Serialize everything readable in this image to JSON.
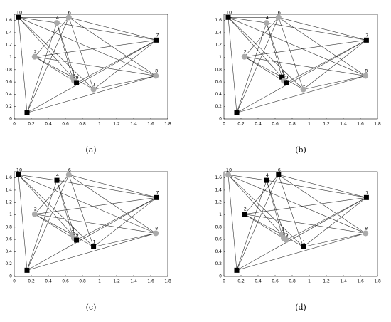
{
  "chart_data": [
    {
      "type": "scatter",
      "caption": "(a)",
      "labels": [
        "1",
        "2",
        "3",
        "4",
        "5",
        "6",
        "7",
        "8",
        "9",
        "10",
        null
      ],
      "x": [
        0.93,
        0.24,
        0.68,
        0.5,
        0.7,
        0.64,
        1.67,
        1.66,
        0.73,
        0.05,
        0.15
      ],
      "y": [
        0.48,
        1.01,
        0.68,
        1.56,
        0.62,
        1.65,
        1.28,
        0.7,
        0.59,
        1.65,
        0.1
      ],
      "markers": [
        "circle",
        "circle",
        "circle",
        "circle",
        "circle",
        "circle",
        "square",
        "circle",
        "square",
        "square",
        "square"
      ],
      "edges": [
        [
          9,
          5
        ],
        [
          9,
          3
        ],
        [
          9,
          0
        ],
        [
          9,
          2
        ],
        [
          9,
          10
        ],
        [
          5,
          6
        ],
        [
          3,
          6
        ],
        [
          5,
          10
        ],
        [
          3,
          10
        ],
        [
          5,
          0
        ],
        [
          5,
          7
        ],
        [
          3,
          8
        ],
        [
          1,
          2
        ],
        [
          1,
          8
        ],
        [
          1,
          6
        ],
        [
          6,
          10
        ],
        [
          6,
          8
        ],
        [
          6,
          0
        ],
        [
          7,
          10
        ],
        [
          7,
          1
        ],
        [
          0,
          7
        ],
        [
          3,
          2
        ],
        [
          5,
          1
        ],
        [
          9,
          7
        ],
        [
          2,
          0
        ]
      ],
      "xlim": [
        0,
        1.8
      ],
      "ylim": [
        0,
        1.7
      ],
      "xticks": [
        0,
        0.2,
        0.4,
        0.6,
        0.8,
        1,
        1.2,
        1.4,
        1.6,
        1.8
      ],
      "yticks": [
        0,
        0.2,
        0.4,
        0.6,
        0.8,
        1,
        1.2,
        1.4,
        1.6
      ]
    },
    {
      "type": "scatter",
      "caption": "(b)",
      "labels": [
        "1",
        "2",
        "3",
        "4",
        "5",
        "6",
        "7",
        "8",
        "9",
        "10",
        null
      ],
      "x": [
        0.93,
        0.24,
        0.68,
        0.5,
        0.7,
        0.64,
        1.67,
        1.66,
        0.73,
        0.05,
        0.15
      ],
      "y": [
        0.48,
        1.01,
        0.68,
        1.56,
        0.62,
        1.65,
        1.28,
        0.7,
        0.59,
        1.65,
        0.1
      ],
      "markers": [
        "circle",
        "circle",
        "square",
        "circle",
        "circle",
        "circle",
        "square",
        "circle",
        "square",
        "square",
        "square"
      ],
      "edges": [
        [
          9,
          5
        ],
        [
          9,
          3
        ],
        [
          9,
          0
        ],
        [
          9,
          2
        ],
        [
          9,
          10
        ],
        [
          5,
          6
        ],
        [
          3,
          6
        ],
        [
          5,
          10
        ],
        [
          3,
          10
        ],
        [
          5,
          0
        ],
        [
          5,
          7
        ],
        [
          3,
          8
        ],
        [
          1,
          2
        ],
        [
          1,
          8
        ],
        [
          1,
          6
        ],
        [
          6,
          10
        ],
        [
          6,
          8
        ],
        [
          6,
          0
        ],
        [
          7,
          10
        ],
        [
          7,
          1
        ],
        [
          0,
          7
        ],
        [
          3,
          2
        ],
        [
          5,
          1
        ],
        [
          9,
          7
        ],
        [
          2,
          0
        ]
      ],
      "xlim": [
        0,
        1.8
      ],
      "ylim": [
        0,
        1.7
      ],
      "xticks": [
        0,
        0.2,
        0.4,
        0.6,
        0.8,
        1,
        1.2,
        1.4,
        1.6,
        1.8
      ],
      "yticks": [
        0,
        0.2,
        0.4,
        0.6,
        0.8,
        1,
        1.2,
        1.4,
        1.6
      ]
    },
    {
      "type": "scatter",
      "caption": "(c)",
      "labels": [
        "1",
        "2",
        "3",
        "4",
        "5",
        "6",
        "7",
        "8",
        "9",
        "10",
        null
      ],
      "x": [
        0.93,
        0.24,
        0.68,
        0.5,
        0.7,
        0.64,
        1.67,
        1.66,
        0.73,
        0.05,
        0.15
      ],
      "y": [
        0.48,
        1.01,
        0.68,
        1.56,
        0.62,
        1.65,
        1.28,
        0.7,
        0.59,
        1.65,
        0.1
      ],
      "markers": [
        "square",
        "circle",
        "circle",
        "square",
        "circle",
        "circle",
        "square",
        "circle",
        "square",
        "square",
        "square"
      ],
      "edges": [
        [
          9,
          5
        ],
        [
          9,
          3
        ],
        [
          9,
          0
        ],
        [
          9,
          2
        ],
        [
          9,
          10
        ],
        [
          5,
          6
        ],
        [
          3,
          6
        ],
        [
          5,
          10
        ],
        [
          3,
          10
        ],
        [
          5,
          0
        ],
        [
          5,
          7
        ],
        [
          3,
          8
        ],
        [
          1,
          2
        ],
        [
          1,
          8
        ],
        [
          1,
          6
        ],
        [
          6,
          10
        ],
        [
          6,
          8
        ],
        [
          6,
          0
        ],
        [
          7,
          10
        ],
        [
          7,
          1
        ],
        [
          0,
          7
        ],
        [
          3,
          2
        ],
        [
          5,
          1
        ],
        [
          9,
          7
        ],
        [
          2,
          0
        ]
      ],
      "xlim": [
        0,
        1.8
      ],
      "ylim": [
        0,
        1.7
      ],
      "xticks": [
        0,
        0.2,
        0.4,
        0.6,
        0.8,
        1,
        1.2,
        1.4,
        1.6,
        1.8
      ],
      "yticks": [
        0,
        0.2,
        0.4,
        0.6,
        0.8,
        1,
        1.2,
        1.4,
        1.6
      ]
    },
    {
      "type": "scatter",
      "caption": "(d)",
      "labels": [
        "1",
        "2",
        "3",
        "4",
        "5",
        "6",
        "7",
        "8",
        "9",
        "10",
        null
      ],
      "x": [
        0.93,
        0.24,
        0.68,
        0.5,
        0.7,
        0.64,
        1.67,
        1.66,
        0.73,
        0.05,
        0.15
      ],
      "y": [
        0.48,
        1.01,
        0.68,
        1.56,
        0.62,
        1.65,
        1.28,
        0.7,
        0.59,
        1.65,
        0.1
      ],
      "markers": [
        "square",
        "square",
        "circle",
        "square",
        "circle",
        "square",
        "square",
        "circle",
        "circle",
        "circle",
        "square"
      ],
      "edges": [
        [
          9,
          5
        ],
        [
          9,
          3
        ],
        [
          9,
          0
        ],
        [
          9,
          2
        ],
        [
          9,
          10
        ],
        [
          5,
          6
        ],
        [
          3,
          6
        ],
        [
          5,
          10
        ],
        [
          3,
          10
        ],
        [
          5,
          0
        ],
        [
          5,
          7
        ],
        [
          3,
          8
        ],
        [
          1,
          2
        ],
        [
          1,
          8
        ],
        [
          1,
          6
        ],
        [
          6,
          10
        ],
        [
          6,
          8
        ],
        [
          6,
          0
        ],
        [
          7,
          10
        ],
        [
          7,
          1
        ],
        [
          0,
          7
        ],
        [
          3,
          2
        ],
        [
          5,
          1
        ],
        [
          9,
          7
        ],
        [
          2,
          0
        ]
      ],
      "xlim": [
        0,
        1.8
      ],
      "ylim": [
        0,
        1.7
      ],
      "xticks": [
        0,
        0.2,
        0.4,
        0.6,
        0.8,
        1,
        1.2,
        1.4,
        1.6,
        1.8
      ],
      "yticks": [
        0,
        0.2,
        0.4,
        0.6,
        0.8,
        1,
        1.2,
        1.4,
        1.6
      ]
    }
  ]
}
